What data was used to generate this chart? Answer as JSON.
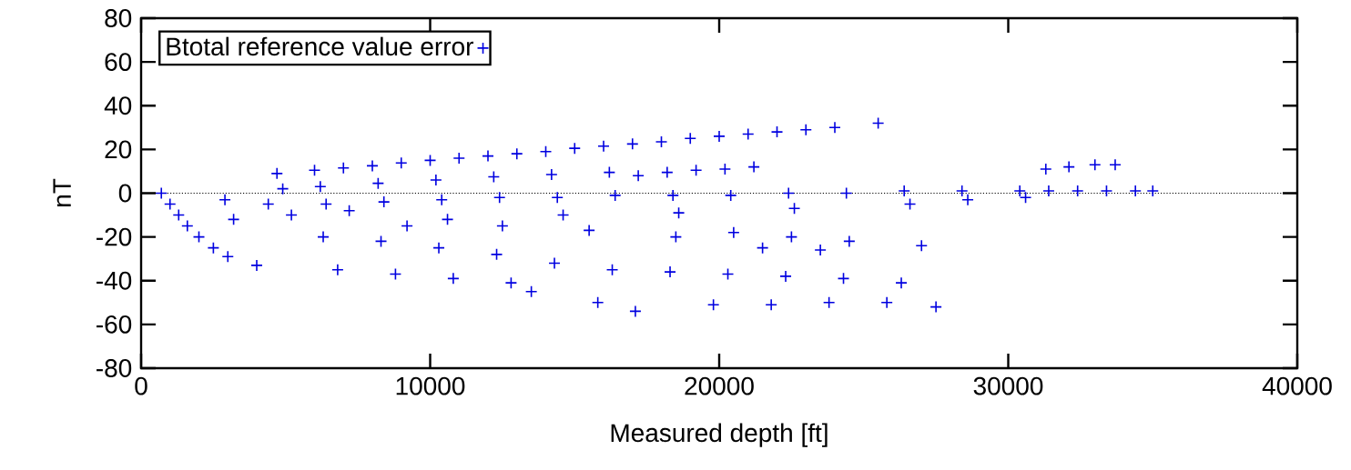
{
  "chart_data": {
    "type": "scatter",
    "xlabel": "Measured depth [ft]",
    "ylabel": "nT",
    "xlim": [
      0,
      40000
    ],
    "ylim": [
      -80,
      80
    ],
    "xticks": [
      0,
      10000,
      20000,
      30000,
      40000
    ],
    "yticks": [
      -80,
      -60,
      -40,
      -20,
      0,
      20,
      40,
      60,
      80
    ],
    "legend": "top left",
    "marker": "cross",
    "grid": false,
    "ref_lines": [
      {
        "axis": "y",
        "value": 0,
        "color": "#000000",
        "line_style": "dotted"
      }
    ],
    "series": [
      {
        "name": "Btotal reference value error",
        "color": "#0000e0",
        "x": [
          4700,
          6000,
          7000,
          8000,
          9000,
          10000,
          11000,
          12000,
          13000,
          14000,
          15000,
          16000,
          17000,
          18000,
          19000,
          20000,
          21000,
          22000,
          23000,
          24000,
          25500,
          4900,
          6200,
          8200,
          10200,
          12200,
          14200,
          16200,
          17200,
          18200,
          19200,
          20200,
          21200,
          2900,
          4400,
          6400,
          8400,
          10400,
          12400,
          14400,
          16400,
          18400,
          20400,
          22400,
          24400,
          26400,
          28400,
          30400,
          31400,
          32400,
          33400,
          34400,
          35000,
          10600,
          14600,
          18600,
          22600,
          26600,
          28600,
          30600,
          31300,
          32100,
          33000,
          33700,
          700,
          1000,
          1300,
          1600,
          2000,
          2500,
          3000,
          4000,
          6800,
          8800,
          10800,
          12800,
          13500,
          15800,
          17100,
          19800,
          21800,
          23800,
          25800,
          27500,
          6300,
          8300,
          10300,
          12300,
          14300,
          16300,
          18300,
          20300,
          22300,
          24300,
          26300,
          12500,
          15500,
          18500,
          20500,
          22500,
          24500,
          27000,
          3200,
          5200,
          7200,
          9200,
          21500,
          23500
        ],
        "values": [
          9,
          10.5,
          11.5,
          12.5,
          13.8,
          15,
          16,
          17,
          18,
          19,
          20.5,
          21.5,
          22.5,
          23.5,
          25,
          26,
          27,
          28,
          29,
          30,
          32,
          2,
          3,
          4.5,
          6,
          7.5,
          8.5,
          9.5,
          8,
          9.5,
          10.5,
          11,
          12,
          -3,
          -5,
          -5,
          -4,
          -3,
          -2,
          -2,
          -1,
          -1,
          -1,
          0,
          0,
          1,
          1,
          1,
          1,
          1,
          1,
          1,
          1,
          -12,
          -10,
          -9,
          -7,
          -5,
          -3,
          -2,
          11,
          12,
          13,
          13,
          0,
          -5,
          -10,
          -15,
          -20,
          -25,
          -29,
          -33,
          -35,
          -37,
          -39,
          -41,
          -45,
          -50,
          -54,
          -51,
          -51,
          -50,
          -50,
          -52,
          -20,
          -22,
          -25,
          -28,
          -32,
          -35,
          -36,
          -37,
          -38,
          -39,
          -41,
          -15,
          -17,
          -20,
          -18,
          -20,
          -22,
          -24,
          -12,
          -10,
          -8,
          -15,
          -25,
          -26
        ]
      }
    ]
  }
}
